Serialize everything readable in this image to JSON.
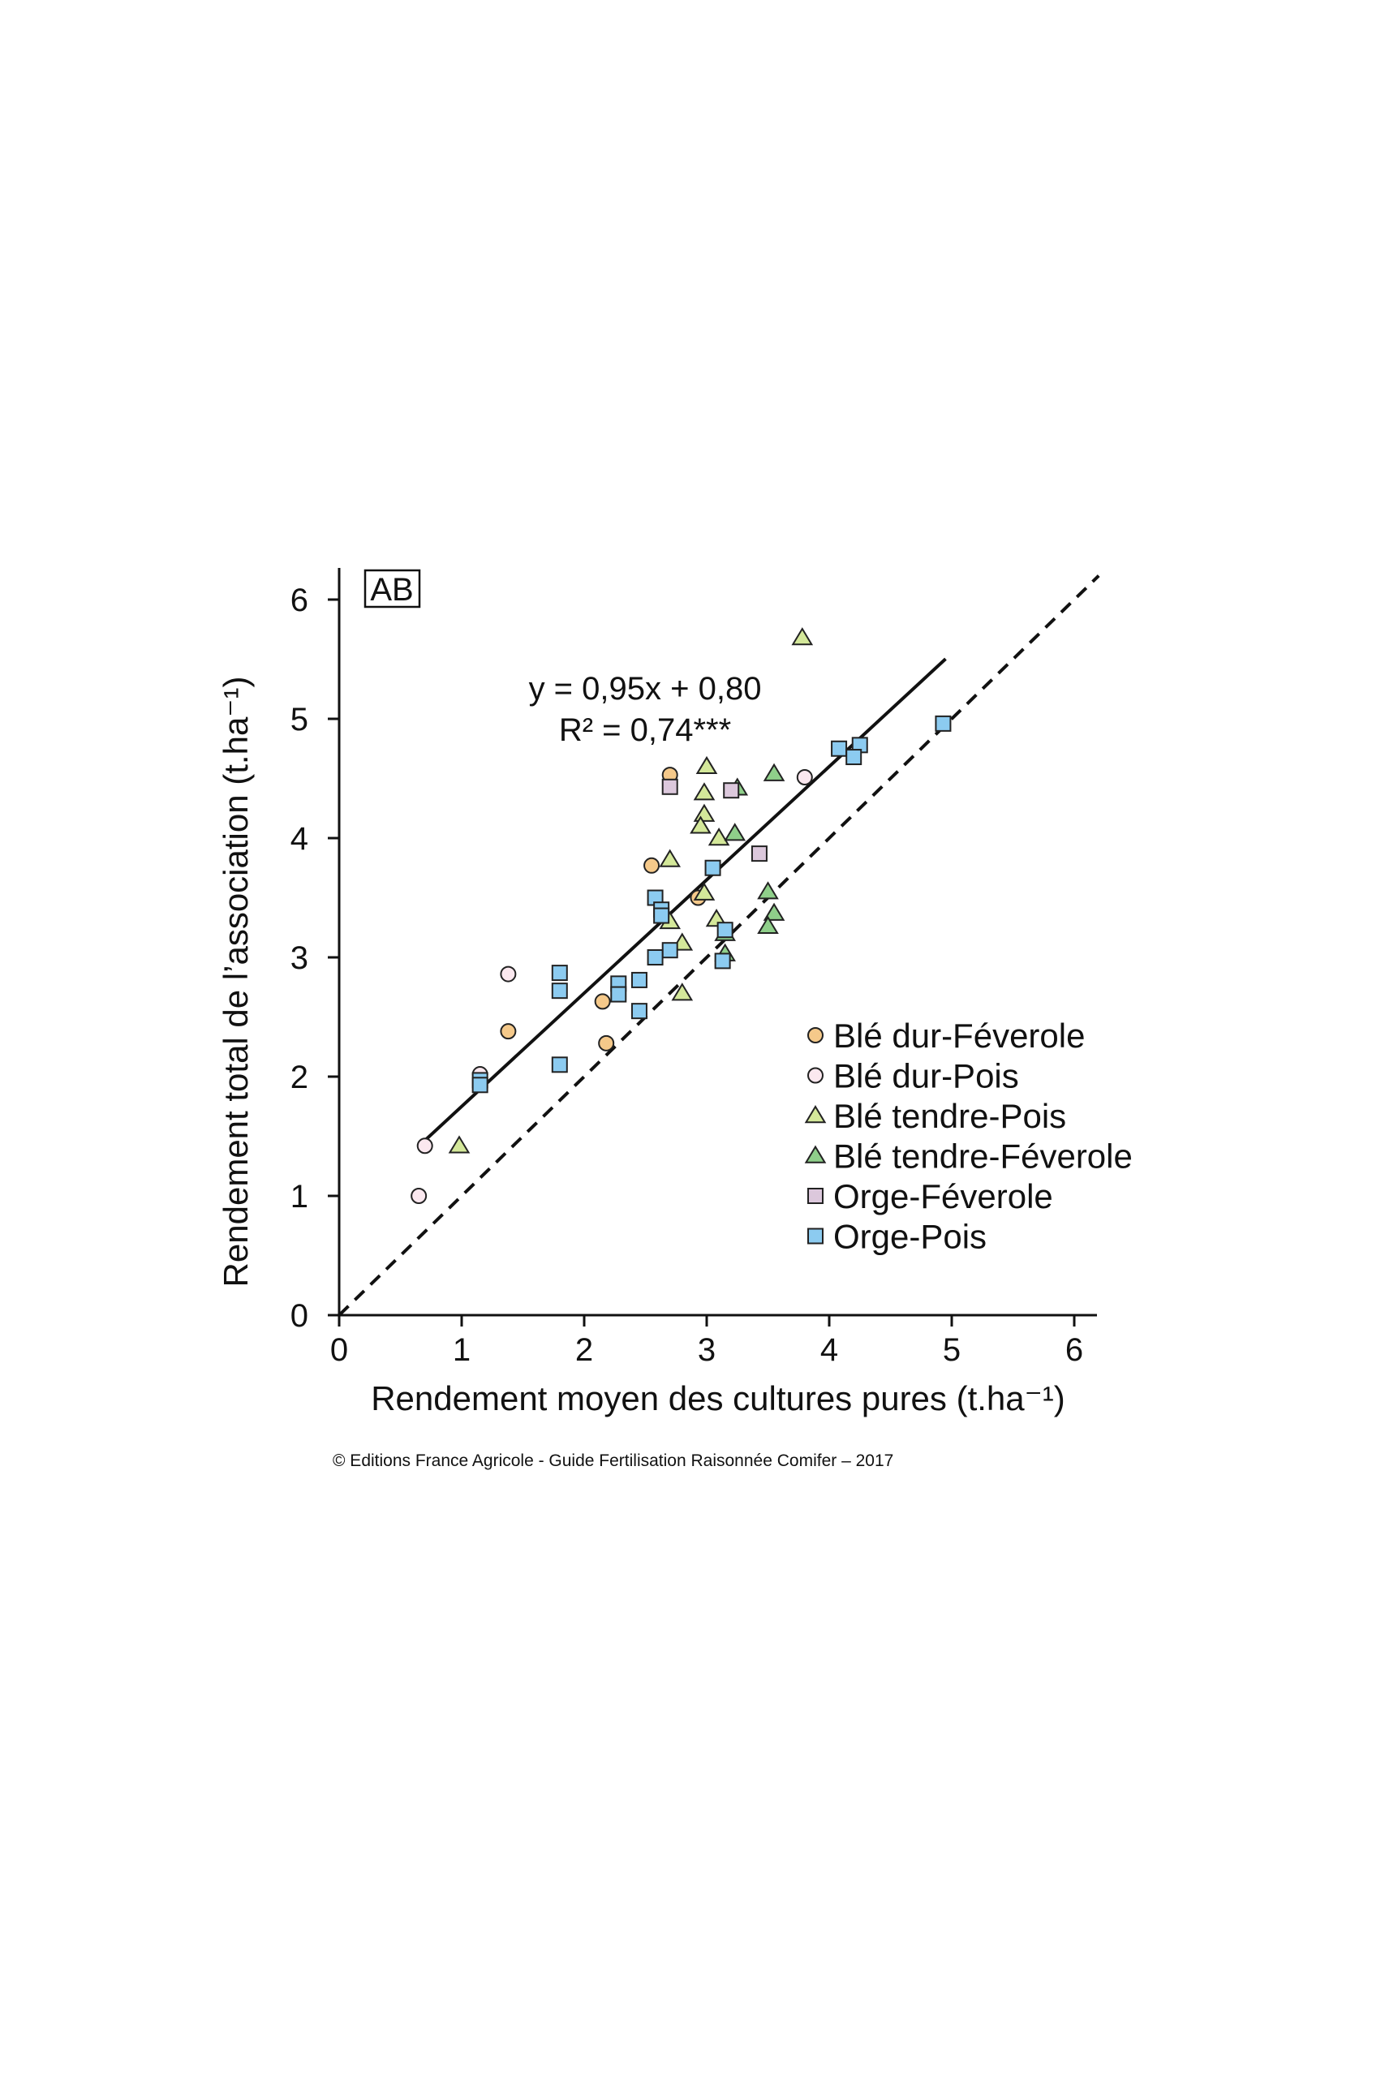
{
  "chart_data": {
    "type": "scatter",
    "badge": "AB",
    "xlabel": "Rendement moyen des cultures pures (t.ha⁻¹)",
    "ylabel": "Rendement total de l’association (t.ha⁻¹)",
    "xlim": [
      0,
      6.2
    ],
    "ylim": [
      0,
      6.2
    ],
    "x_ticks": [
      0,
      1,
      2,
      3,
      4,
      5,
      6
    ],
    "y_ticks": [
      0,
      1,
      2,
      3,
      4,
      5,
      6
    ],
    "grid": false,
    "legend_position": "bottom-right",
    "equation": "y = 0,95x + 0,80",
    "r2": "R² = 0,74***",
    "regression": {
      "slope": 0.95,
      "intercept": 0.8,
      "x_range": [
        0.7,
        4.95
      ],
      "style": "solid"
    },
    "identity_line": {
      "slope": 1,
      "intercept": 0,
      "x_range": [
        0,
        6.2
      ],
      "style": "dashed"
    },
    "colors": {
      "bd_fev": "#f5c98a",
      "bd_pois": "#fbe8ef",
      "bt_pois": "#d4e89a",
      "bt_fev": "#8fcf8a",
      "orge_fev": "#dcc8dc",
      "orge_pois": "#8ccbf0",
      "line": "#111111"
    },
    "series": [
      {
        "name": "Blé dur-Féverole",
        "marker": "circle",
        "color_key": "bd_fev",
        "points": [
          [
            2.7,
            4.53
          ],
          [
            2.55,
            3.77
          ],
          [
            2.93,
            3.5
          ],
          [
            1.38,
            2.38
          ],
          [
            2.15,
            2.63
          ],
          [
            2.18,
            2.28
          ]
        ]
      },
      {
        "name": "Blé dur-Pois",
        "marker": "circle",
        "color_key": "bd_pois",
        "points": [
          [
            3.8,
            4.51
          ],
          [
            1.38,
            2.86
          ],
          [
            1.15,
            2.02
          ],
          [
            0.7,
            1.42
          ],
          [
            0.65,
            1.0
          ]
        ]
      },
      {
        "name": "Blé tendre-Pois",
        "marker": "triangle",
        "color_key": "bt_pois",
        "points": [
          [
            3.78,
            5.68
          ],
          [
            3.0,
            4.6
          ],
          [
            2.98,
            4.38
          ],
          [
            2.98,
            4.2
          ],
          [
            2.95,
            4.1
          ],
          [
            3.1,
            4.0
          ],
          [
            2.7,
            3.82
          ],
          [
            2.98,
            3.54
          ],
          [
            2.7,
            3.3
          ],
          [
            3.08,
            3.32
          ],
          [
            2.8,
            3.12
          ],
          [
            2.8,
            2.7
          ],
          [
            0.98,
            1.42
          ]
        ]
      },
      {
        "name": "Blé tendre-Féverole",
        "marker": "triangle",
        "color_key": "bt_fev",
        "points": [
          [
            3.55,
            4.54
          ],
          [
            3.25,
            4.42
          ],
          [
            3.23,
            4.04
          ],
          [
            3.5,
            3.55
          ],
          [
            3.55,
            3.37
          ],
          [
            3.5,
            3.26
          ],
          [
            3.15,
            3.2
          ],
          [
            3.15,
            3.03
          ]
        ]
      },
      {
        "name": "Orge-Féverole",
        "marker": "square",
        "color_key": "orge_fev",
        "points": [
          [
            2.7,
            4.43
          ],
          [
            3.2,
            4.4
          ],
          [
            3.43,
            3.87
          ]
        ]
      },
      {
        "name": "Orge-Pois",
        "marker": "square",
        "color_key": "orge_pois",
        "points": [
          [
            4.93,
            4.96
          ],
          [
            4.25,
            4.78
          ],
          [
            4.08,
            4.75
          ],
          [
            4.2,
            4.68
          ],
          [
            3.05,
            3.75
          ],
          [
            2.58,
            3.5
          ],
          [
            2.63,
            3.4
          ],
          [
            2.63,
            3.35
          ],
          [
            2.7,
            3.06
          ],
          [
            2.58,
            3.0
          ],
          [
            3.15,
            3.23
          ],
          [
            3.13,
            2.97
          ],
          [
            1.8,
            2.87
          ],
          [
            1.8,
            2.72
          ],
          [
            2.45,
            2.81
          ],
          [
            2.28,
            2.78
          ],
          [
            2.28,
            2.69
          ],
          [
            2.45,
            2.55
          ],
          [
            1.8,
            2.1
          ],
          [
            1.15,
            1.97
          ],
          [
            1.15,
            1.93
          ]
        ]
      }
    ]
  },
  "copyright": "© Editions France Agricole - Guide Fertilisation Raisonnée Comifer – 2017"
}
